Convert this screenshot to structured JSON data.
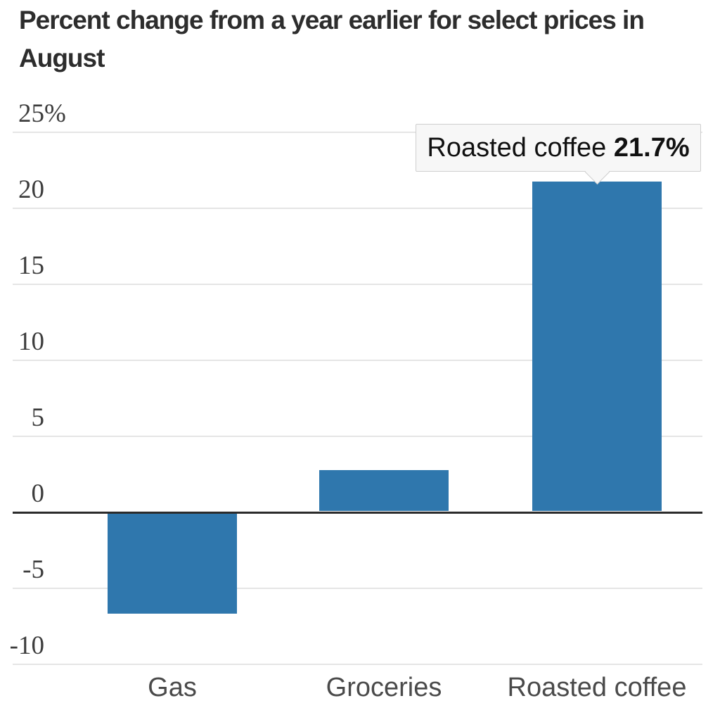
{
  "title": "Percent change from a year earlier for select prices in August",
  "chart_data": {
    "type": "bar",
    "categories": [
      "Gas",
      "Groceries",
      "Roasted coffee"
    ],
    "values": [
      -6.6,
      2.7,
      21.7
    ],
    "title": "Percent change from a year earlier for select prices in August",
    "xlabel": "",
    "ylabel": "",
    "ylim": [
      -10,
      25
    ],
    "yticks": [
      25,
      20,
      15,
      10,
      5,
      0,
      -5,
      -10
    ],
    "ytick_labels": [
      "25%",
      "20",
      "15",
      "10",
      "5",
      "0",
      "-5",
      "-10"
    ],
    "grid": true,
    "legend": "none",
    "bar_color": "#2f77ad",
    "annotation": {
      "label": "Roasted coffee",
      "value": "21.7%",
      "target_category": "Roasted coffee"
    }
  },
  "colors": {
    "bar": "#2f77ad",
    "zero_line": "#2b2b2b",
    "gridline": "#e5e5e5",
    "tooltip_bg": "#f7f7f7",
    "tooltip_border": "#cfcfcf",
    "title_text": "#2d2d2d",
    "axis_text": "#3d3d3d"
  }
}
